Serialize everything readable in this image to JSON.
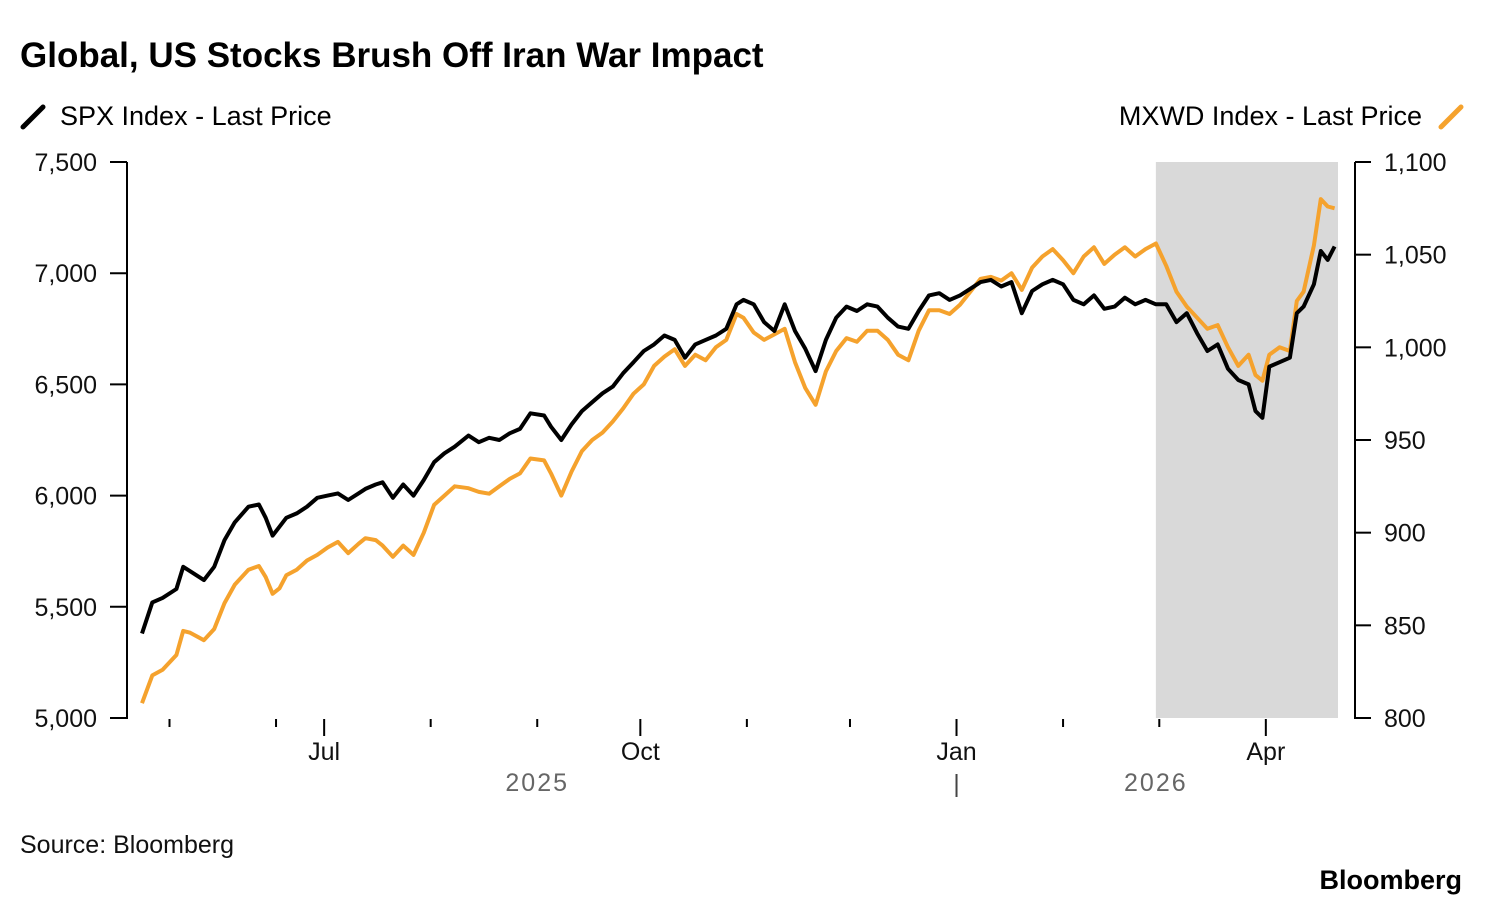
{
  "chart_data": {
    "type": "line",
    "title": "Global, US Stocks Brush Off Iran War Impact",
    "source": "Source: Bloomberg",
    "brand": "Bloomberg",
    "colors": {
      "spx": "#000000",
      "mxwd": "#f5a22d",
      "shade": "#d9d9d9"
    },
    "left_axis": {
      "ylim": [
        5000,
        7500
      ],
      "ticks": [
        "7,500",
        "7,000",
        "6,500",
        "6,000",
        "5,500",
        "5,000"
      ],
      "tick_values": [
        7500,
        7000,
        6500,
        6000,
        5500,
        5000
      ]
    },
    "right_axis": {
      "ylim": [
        800,
        1100
      ],
      "ticks": [
        "1,100",
        "1,050",
        "1,000",
        "950",
        "900",
        "850",
        "800"
      ],
      "tick_values": [
        1100,
        1050,
        1000,
        950,
        900,
        850,
        800
      ]
    },
    "x_axis": {
      "start": "2025-05-09",
      "end": "2026-04-22",
      "labels": [
        {
          "label": "Jul",
          "date": "2025-07-01"
        },
        {
          "label": "Oct",
          "date": "2025-10-01"
        },
        {
          "label": "Jan",
          "date": "2026-01-01"
        },
        {
          "label": "Apr",
          "date": "2026-04-01"
        }
      ],
      "minor_ticks": [
        "2025-05-17",
        "2025-06-17",
        "2025-08-01",
        "2025-09-01",
        "2025-11-01",
        "2025-12-01",
        "2026-02-01",
        "2026-03-01"
      ],
      "years": [
        {
          "label": "2025",
          "date": "2025-09-01"
        },
        {
          "label": "2026",
          "date": "2026-02-28"
        }
      ],
      "year_divider": "2026-01-01"
    },
    "shaded_region": {
      "start": "2026-02-28",
      "end": "2026-04-22"
    },
    "series": [
      {
        "name": "SPX Index - Last Price",
        "axis": "left",
        "points": [
          [
            "2025-05-09",
            5380
          ],
          [
            "2025-05-12",
            5520
          ],
          [
            "2025-05-15",
            5540
          ],
          [
            "2025-05-19",
            5580
          ],
          [
            "2025-05-21",
            5680
          ],
          [
            "2025-05-23",
            5660
          ],
          [
            "2025-05-27",
            5620
          ],
          [
            "2025-05-30",
            5680
          ],
          [
            "2025-06-02",
            5800
          ],
          [
            "2025-06-05",
            5880
          ],
          [
            "2025-06-09",
            5950
          ],
          [
            "2025-06-12",
            5960
          ],
          [
            "2025-06-14",
            5900
          ],
          [
            "2025-06-16",
            5820
          ],
          [
            "2025-06-18",
            5860
          ],
          [
            "2025-06-20",
            5900
          ],
          [
            "2025-06-23",
            5920
          ],
          [
            "2025-06-26",
            5950
          ],
          [
            "2025-06-29",
            5990
          ],
          [
            "2025-07-02",
            6000
          ],
          [
            "2025-07-05",
            6010
          ],
          [
            "2025-07-08",
            5980
          ],
          [
            "2025-07-11",
            6010
          ],
          [
            "2025-07-13",
            6030
          ],
          [
            "2025-07-16",
            6050
          ],
          [
            "2025-07-18",
            6060
          ],
          [
            "2025-07-21",
            5990
          ],
          [
            "2025-07-24",
            6050
          ],
          [
            "2025-07-27",
            6000
          ],
          [
            "2025-07-30",
            6070
          ],
          [
            "2025-08-02",
            6150
          ],
          [
            "2025-08-05",
            6190
          ],
          [
            "2025-08-08",
            6220
          ],
          [
            "2025-08-12",
            6270
          ],
          [
            "2025-08-15",
            6240
          ],
          [
            "2025-08-18",
            6260
          ],
          [
            "2025-08-21",
            6250
          ],
          [
            "2025-08-24",
            6280
          ],
          [
            "2025-08-27",
            6300
          ],
          [
            "2025-08-30",
            6370
          ],
          [
            "2025-09-03",
            6360
          ],
          [
            "2025-09-05",
            6310
          ],
          [
            "2025-09-08",
            6250
          ],
          [
            "2025-09-11",
            6320
          ],
          [
            "2025-09-14",
            6380
          ],
          [
            "2025-09-17",
            6420
          ],
          [
            "2025-09-20",
            6460
          ],
          [
            "2025-09-23",
            6490
          ],
          [
            "2025-09-26",
            6550
          ],
          [
            "2025-09-29",
            6600
          ],
          [
            "2025-10-02",
            6650
          ],
          [
            "2025-10-05",
            6680
          ],
          [
            "2025-10-08",
            6720
          ],
          [
            "2025-10-11",
            6700
          ],
          [
            "2025-10-14",
            6620
          ],
          [
            "2025-10-17",
            6680
          ],
          [
            "2025-10-20",
            6700
          ],
          [
            "2025-10-23",
            6720
          ],
          [
            "2025-10-26",
            6750
          ],
          [
            "2025-10-29",
            6860
          ],
          [
            "2025-10-31",
            6880
          ],
          [
            "2025-11-03",
            6860
          ],
          [
            "2025-11-06",
            6780
          ],
          [
            "2025-11-09",
            6740
          ],
          [
            "2025-11-12",
            6860
          ],
          [
            "2025-11-15",
            6740
          ],
          [
            "2025-11-18",
            6660
          ],
          [
            "2025-11-21",
            6560
          ],
          [
            "2025-11-24",
            6700
          ],
          [
            "2025-11-27",
            6800
          ],
          [
            "2025-11-30",
            6850
          ],
          [
            "2025-12-03",
            6830
          ],
          [
            "2025-12-06",
            6860
          ],
          [
            "2025-12-09",
            6850
          ],
          [
            "2025-12-12",
            6800
          ],
          [
            "2025-12-15",
            6760
          ],
          [
            "2025-12-18",
            6750
          ],
          [
            "2025-12-21",
            6830
          ],
          [
            "2025-12-24",
            6900
          ],
          [
            "2025-12-27",
            6910
          ],
          [
            "2025-12-30",
            6880
          ],
          [
            "2026-01-02",
            6900
          ],
          [
            "2026-01-05",
            6930
          ],
          [
            "2026-01-08",
            6960
          ],
          [
            "2026-01-11",
            6970
          ],
          [
            "2026-01-14",
            6940
          ],
          [
            "2026-01-17",
            6960
          ],
          [
            "2026-01-20",
            6820
          ],
          [
            "2026-01-23",
            6920
          ],
          [
            "2026-01-26",
            6950
          ],
          [
            "2026-01-29",
            6970
          ],
          [
            "2026-02-01",
            6950
          ],
          [
            "2026-02-04",
            6880
          ],
          [
            "2026-02-07",
            6860
          ],
          [
            "2026-02-10",
            6900
          ],
          [
            "2026-02-13",
            6840
          ],
          [
            "2026-02-16",
            6850
          ],
          [
            "2026-02-19",
            6890
          ],
          [
            "2026-02-22",
            6860
          ],
          [
            "2026-02-25",
            6880
          ],
          [
            "2026-02-28",
            6860
          ],
          [
            "2026-03-03",
            6860
          ],
          [
            "2026-03-06",
            6780
          ],
          [
            "2026-03-09",
            6820
          ],
          [
            "2026-03-12",
            6730
          ],
          [
            "2026-03-15",
            6650
          ],
          [
            "2026-03-18",
            6680
          ],
          [
            "2026-03-21",
            6570
          ],
          [
            "2026-03-24",
            6520
          ],
          [
            "2026-03-27",
            6500
          ],
          [
            "2026-03-29",
            6380
          ],
          [
            "2026-03-31",
            6350
          ],
          [
            "2026-04-02",
            6580
          ],
          [
            "2026-04-05",
            6600
          ],
          [
            "2026-04-08",
            6620
          ],
          [
            "2026-04-10",
            6820
          ],
          [
            "2026-04-12",
            6850
          ],
          [
            "2026-04-15",
            6950
          ],
          [
            "2026-04-17",
            7100
          ],
          [
            "2026-04-19",
            7060
          ],
          [
            "2026-04-21",
            7120
          ]
        ]
      },
      {
        "name": "MXWD Index - Last Price",
        "axis": "right",
        "points": [
          [
            "2025-05-09",
            808
          ],
          [
            "2025-05-12",
            823
          ],
          [
            "2025-05-15",
            826
          ],
          [
            "2025-05-19",
            834
          ],
          [
            "2025-05-21",
            847
          ],
          [
            "2025-05-23",
            846
          ],
          [
            "2025-05-27",
            842
          ],
          [
            "2025-05-30",
            848
          ],
          [
            "2025-06-02",
            862
          ],
          [
            "2025-06-05",
            872
          ],
          [
            "2025-06-09",
            880
          ],
          [
            "2025-06-12",
            882
          ],
          [
            "2025-06-14",
            876
          ],
          [
            "2025-06-16",
            867
          ],
          [
            "2025-06-18",
            870
          ],
          [
            "2025-06-20",
            877
          ],
          [
            "2025-06-23",
            880
          ],
          [
            "2025-06-26",
            885
          ],
          [
            "2025-06-29",
            888
          ],
          [
            "2025-07-02",
            892
          ],
          [
            "2025-07-05",
            895
          ],
          [
            "2025-07-08",
            889
          ],
          [
            "2025-07-11",
            894
          ],
          [
            "2025-07-13",
            897
          ],
          [
            "2025-07-16",
            896
          ],
          [
            "2025-07-18",
            893
          ],
          [
            "2025-07-21",
            887
          ],
          [
            "2025-07-24",
            893
          ],
          [
            "2025-07-27",
            888
          ],
          [
            "2025-07-30",
            900
          ],
          [
            "2025-08-02",
            915
          ],
          [
            "2025-08-05",
            920
          ],
          [
            "2025-08-08",
            925
          ],
          [
            "2025-08-12",
            924
          ],
          [
            "2025-08-15",
            922
          ],
          [
            "2025-08-18",
            921
          ],
          [
            "2025-08-21",
            925
          ],
          [
            "2025-08-24",
            929
          ],
          [
            "2025-08-27",
            932
          ],
          [
            "2025-08-30",
            940
          ],
          [
            "2025-09-03",
            939
          ],
          [
            "2025-09-05",
            932
          ],
          [
            "2025-09-08",
            920
          ],
          [
            "2025-09-11",
            933
          ],
          [
            "2025-09-14",
            944
          ],
          [
            "2025-09-17",
            950
          ],
          [
            "2025-09-20",
            954
          ],
          [
            "2025-09-23",
            960
          ],
          [
            "2025-09-26",
            967
          ],
          [
            "2025-09-29",
            975
          ],
          [
            "2025-10-02",
            980
          ],
          [
            "2025-10-05",
            990
          ],
          [
            "2025-10-08",
            995
          ],
          [
            "2025-10-11",
            999
          ],
          [
            "2025-10-14",
            990
          ],
          [
            "2025-10-17",
            996
          ],
          [
            "2025-10-20",
            993
          ],
          [
            "2025-10-23",
            1000
          ],
          [
            "2025-10-26",
            1004
          ],
          [
            "2025-10-29",
            1018
          ],
          [
            "2025-10-31",
            1016
          ],
          [
            "2025-11-03",
            1008
          ],
          [
            "2025-11-06",
            1004
          ],
          [
            "2025-11-09",
            1007
          ],
          [
            "2025-11-12",
            1010
          ],
          [
            "2025-11-15",
            992
          ],
          [
            "2025-11-18",
            978
          ],
          [
            "2025-11-21",
            969
          ],
          [
            "2025-11-24",
            987
          ],
          [
            "2025-11-27",
            998
          ],
          [
            "2025-11-30",
            1005
          ],
          [
            "2025-12-03",
            1003
          ],
          [
            "2025-12-06",
            1009
          ],
          [
            "2025-12-09",
            1009
          ],
          [
            "2025-12-12",
            1004
          ],
          [
            "2025-12-15",
            996
          ],
          [
            "2025-12-18",
            993
          ],
          [
            "2025-12-21",
            1009
          ],
          [
            "2025-12-24",
            1020
          ],
          [
            "2025-12-27",
            1020
          ],
          [
            "2025-12-30",
            1018
          ],
          [
            "2026-01-02",
            1023
          ],
          [
            "2026-01-05",
            1030
          ],
          [
            "2026-01-08",
            1037
          ],
          [
            "2026-01-11",
            1038
          ],
          [
            "2026-01-14",
            1036
          ],
          [
            "2026-01-17",
            1040
          ],
          [
            "2026-01-20",
            1031
          ],
          [
            "2026-01-23",
            1043
          ],
          [
            "2026-01-26",
            1049
          ],
          [
            "2026-01-29",
            1053
          ],
          [
            "2026-02-01",
            1047
          ],
          [
            "2026-02-04",
            1040
          ],
          [
            "2026-02-07",
            1049
          ],
          [
            "2026-02-10",
            1054
          ],
          [
            "2026-02-13",
            1045
          ],
          [
            "2026-02-16",
            1050
          ],
          [
            "2026-02-19",
            1054
          ],
          [
            "2026-02-22",
            1049
          ],
          [
            "2026-02-25",
            1053
          ],
          [
            "2026-02-28",
            1056
          ],
          [
            "2026-03-03",
            1044
          ],
          [
            "2026-03-06",
            1030
          ],
          [
            "2026-03-09",
            1022
          ],
          [
            "2026-03-12",
            1016
          ],
          [
            "2026-03-15",
            1010
          ],
          [
            "2026-03-18",
            1012
          ],
          [
            "2026-03-21",
            1000
          ],
          [
            "2026-03-24",
            990
          ],
          [
            "2026-03-27",
            996
          ],
          [
            "2026-03-29",
            985
          ],
          [
            "2026-03-31",
            982
          ],
          [
            "2026-04-02",
            996
          ],
          [
            "2026-04-05",
            1000
          ],
          [
            "2026-04-08",
            998
          ],
          [
            "2026-04-10",
            1025
          ],
          [
            "2026-04-12",
            1030
          ],
          [
            "2026-04-15",
            1055
          ],
          [
            "2026-04-17",
            1080
          ],
          [
            "2026-04-19",
            1076
          ],
          [
            "2026-04-21",
            1075
          ]
        ]
      }
    ]
  }
}
